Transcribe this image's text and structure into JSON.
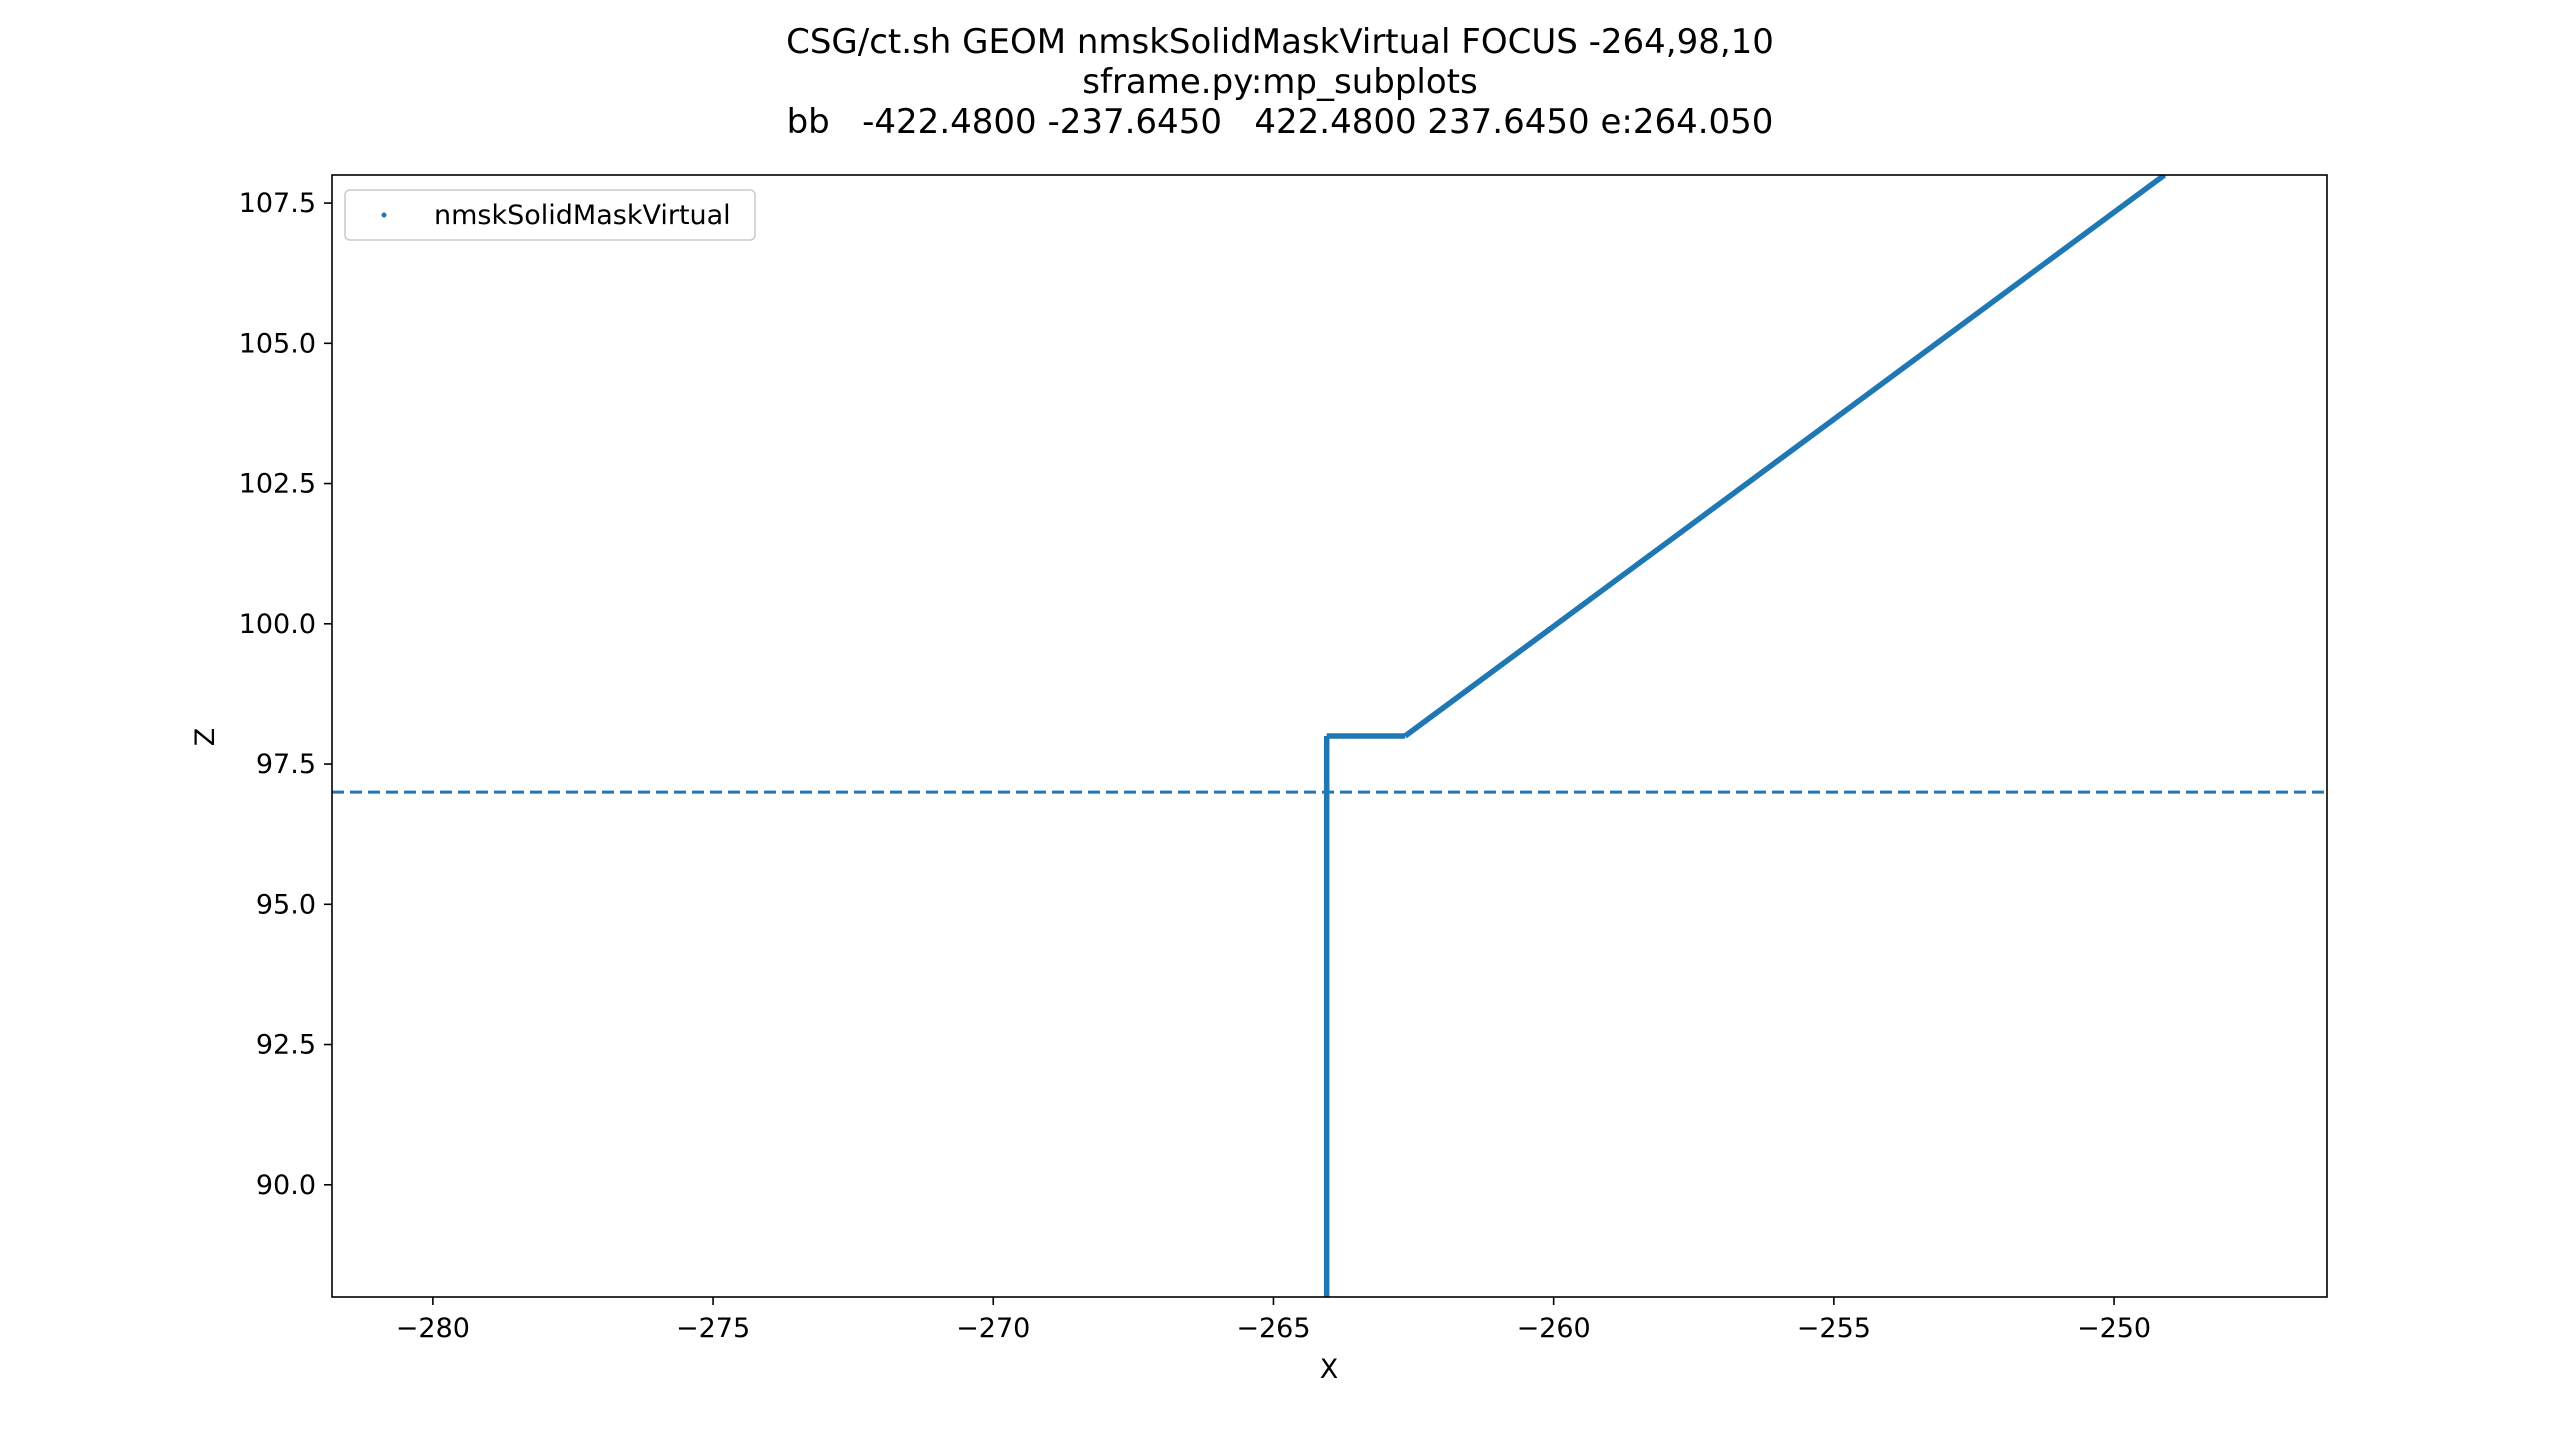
{
  "title": {
    "line1": "CSG/ct.sh GEOM nmskSolidMaskVirtual FOCUS -264,98,10",
    "line2": "sframe.py:mp_subplots",
    "line3": "bb   -422.4800 -237.6450   422.4800 237.6450 e:264.050"
  },
  "chart_data": {
    "type": "scatter",
    "xlabel": "X",
    "ylabel": "Z",
    "xlim": [
      -281.8,
      -246.2
    ],
    "ylim": [
      88.0,
      108.0
    ],
    "xticks": [
      -280,
      -275,
      -270,
      -265,
      -260,
      -255,
      -250
    ],
    "xtick_labels": [
      "−280",
      "−275",
      "−270",
      "−265",
      "−260",
      "−255",
      "−250"
    ],
    "yticks": [
      90.0,
      92.5,
      95.0,
      97.5,
      100.0,
      102.5,
      105.0,
      107.5
    ],
    "ytick_labels": [
      "90.0",
      "92.5",
      "95.0",
      "97.5",
      "100.0",
      "102.5",
      "105.0",
      "107.5"
    ],
    "series": [
      {
        "name": "nmskSolidMaskVirtual",
        "color": "#1f77b4",
        "points": [
          [
            -264.05,
            88.0
          ],
          [
            -264.05,
            98.0
          ],
          [
            -262.65,
            98.0
          ],
          [
            -249.1,
            108.0
          ]
        ]
      }
    ],
    "hline": {
      "y": 97.0,
      "style": "dashed",
      "color": "#1f77b4"
    },
    "legend": {
      "location": "upper left"
    },
    "grid": false
  }
}
